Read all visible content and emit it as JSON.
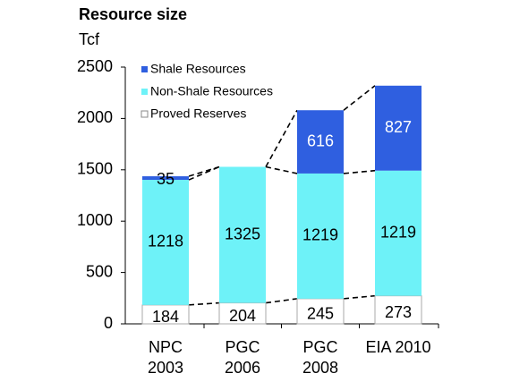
{
  "chart_data": {
    "type": "stacked_bar",
    "title": "Resource size",
    "subtitle": "Tcf",
    "categories": [
      [
        "NPC",
        "2003"
      ],
      [
        "PGC",
        "2006"
      ],
      [
        "PGC",
        "2008"
      ],
      [
        "EIA 2010"
      ]
    ],
    "series": [
      {
        "name": "Proved Reserves",
        "color": "#ffffff",
        "values": [
          184,
          204,
          245,
          273
        ]
      },
      {
        "name": "Non-Shale Resources",
        "color": "#6ef2f8",
        "values": [
          1218,
          1325,
          1219,
          1219
        ]
      },
      {
        "name": "Shale Resources",
        "color": "#2f5fe0",
        "values": [
          35,
          null,
          616,
          827
        ]
      }
    ],
    "ylim": [
      0,
      2500
    ],
    "yticks": [
      0,
      500,
      1000,
      1500,
      2000,
      2500
    ],
    "legend": "top-left"
  }
}
